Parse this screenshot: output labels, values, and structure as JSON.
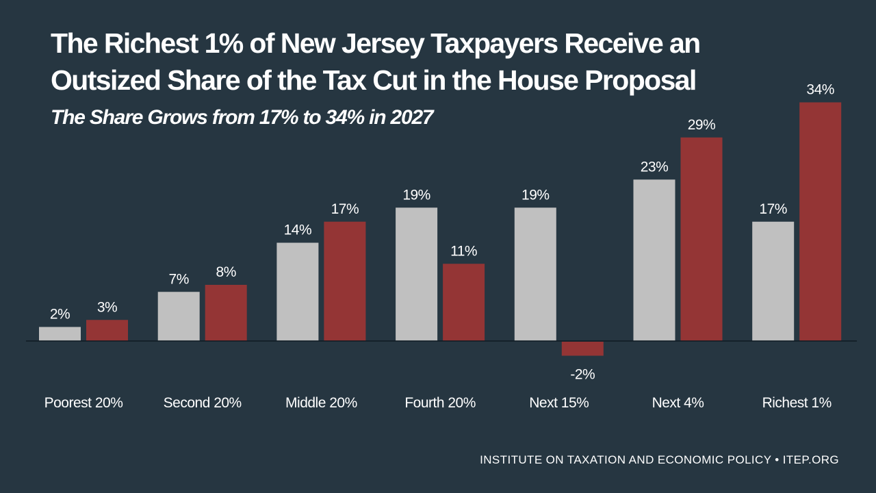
{
  "title_line1": "The Richest 1% of New Jersey Taxpayers Receive an",
  "title_line2": "Outsized Share of the Tax Cut in the House Proposal",
  "subtitle": "The Share Grows from 17% to 34% in 2027",
  "source": "INSTITUTE ON TAXATION AND ECONOMIC POLICY • ITEP.ORG",
  "colors": {
    "background": "#263641",
    "series_1": "#c0c0c0",
    "series_2": "#943535",
    "text": "#ffffff",
    "axis": "#0e1a22"
  },
  "chart_data": {
    "type": "bar",
    "categories": [
      "Poorest 20%",
      "Second 20%",
      "Middle 20%",
      "Fourth 20%",
      "Next 15%",
      "Next 4%",
      "Richest 1%"
    ],
    "series": [
      {
        "values": [
          2,
          7,
          14,
          19,
          19,
          23,
          17
        ],
        "labels": [
          "2%",
          "7%",
          "14%",
          "19%",
          "19%",
          "23%",
          "17%"
        ]
      },
      {
        "values": [
          3,
          8,
          17,
          11,
          -2,
          29,
          34
        ],
        "labels": [
          "3%",
          "8%",
          "17%",
          "11%",
          "-2%",
          "29%",
          "34%"
        ]
      }
    ],
    "ylim": [
      -2,
      34
    ],
    "unit": "%",
    "grid": false,
    "legend": "none"
  }
}
